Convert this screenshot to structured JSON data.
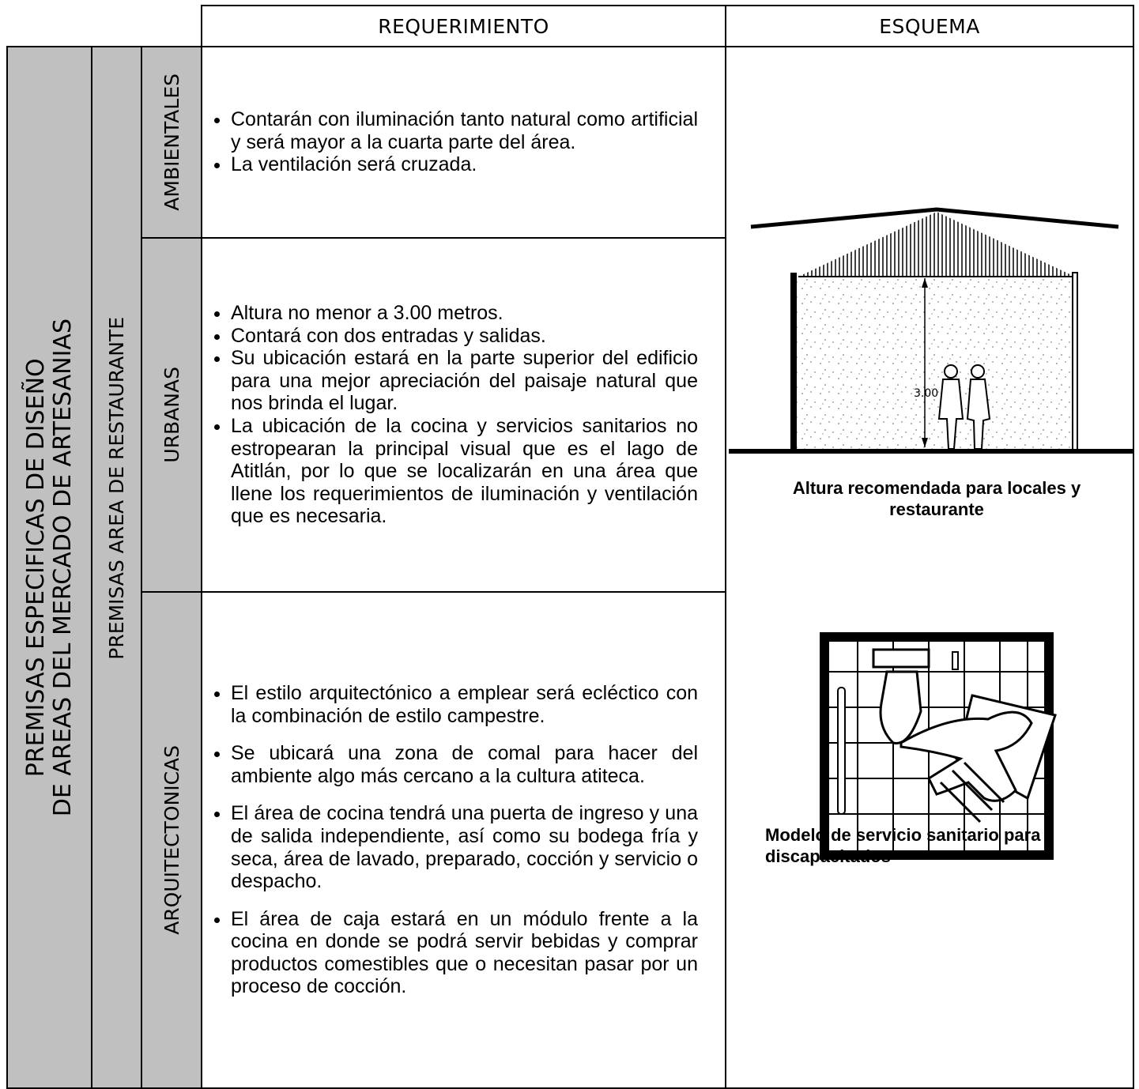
{
  "header": {
    "requirement": "REQUERIMIENTO",
    "scheme": "ESQUEMA"
  },
  "title_lines": [
    "PREMISAS  ESPECIFICAS DE DISEÑO",
    "DE AREAS DEL MERCADO DE ARTESANIAS"
  ],
  "subtitle": "PREMISAS AREA DE RESTAURANTE",
  "sections": [
    {
      "label": "AMBIENTALES",
      "items": [
        "Contarán con iluminación tanto natural como artificial y será mayor a la cuarta parte del área.",
        "La ventilación será cruzada."
      ]
    },
    {
      "label": "URBANAS",
      "items": [
        "Altura  no menor a 3.00 metros.",
        "Contará con dos entradas y salidas.",
        "Su ubicación estará en la parte superior del edificio para una mejor apreciación del paisaje natural que nos brinda el lugar.",
        "La ubicación de la cocina y servicios sanitarios no estropearan la principal visual que es el lago de Atitlán, por lo que se localizarán en una área que llene los requerimientos de iluminación y ventilación que es necesaria."
      ]
    },
    {
      "label": "ARQUITECTONICAS",
      "items": [
        "El estilo arquitectónico a emplear será ecléctico con la combinación de estilo campestre.",
        "Se ubicará una zona de comal para hacer del ambiente algo más cercano a la cultura atiteca.",
        "El área de cocina tendrá una puerta de ingreso y una de salida independiente, así como su bodega fría y seca, área de lavado, preparado, cocción y servicio o despacho.",
        "El área de caja estará en un módulo frente a la cocina en donde se podrá servir bebidas y comprar productos comestibles que o necesitan pasar por un proceso de cocción."
      ]
    }
  ],
  "figures": [
    {
      "caption": "Altura recomendada para locales y restaurante",
      "dimension_label": "3.00"
    },
    {
      "caption": "Modelo de servicio sanitario para discapacitados"
    }
  ]
}
